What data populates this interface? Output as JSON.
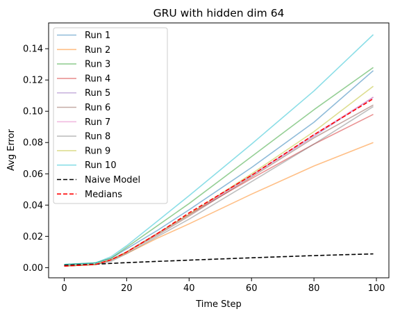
{
  "chart_data": {
    "type": "line",
    "title": "GRU with hidden dim 64",
    "xlabel": "Time Step",
    "ylabel": "Avg Error",
    "xlim": [
      -5,
      104
    ],
    "ylim": [
      -0.0065,
      0.1565
    ],
    "xticks": [
      0,
      20,
      40,
      60,
      80,
      100
    ],
    "yticks": [
      0.0,
      0.02,
      0.04,
      0.06,
      0.08,
      0.1,
      0.12,
      0.14
    ],
    "ytick_labels": [
      "0.00",
      "0.02",
      "0.04",
      "0.06",
      "0.08",
      "0.10",
      "0.12",
      "0.14"
    ],
    "grid": false,
    "legend_position": "top-left",
    "series": [
      {
        "name": "Run 1",
        "color": "#1f77b4",
        "alpha": 0.5,
        "dash": "solid",
        "x": [
          0,
          10,
          15,
          20,
          30,
          40,
          60,
          80,
          99
        ],
        "y": [
          0.002,
          0.003,
          0.006,
          0.012,
          0.024,
          0.037,
          0.064,
          0.093,
          0.126
        ]
      },
      {
        "name": "Run 2",
        "color": "#ff7f0e",
        "alpha": 0.5,
        "dash": "solid",
        "x": [
          0,
          10,
          15,
          20,
          30,
          40,
          60,
          80,
          99
        ],
        "y": [
          0.001,
          0.002,
          0.005,
          0.009,
          0.019,
          0.028,
          0.047,
          0.065,
          0.08
        ]
      },
      {
        "name": "Run 3",
        "color": "#2ca02c",
        "alpha": 0.5,
        "dash": "solid",
        "x": [
          0,
          10,
          15,
          20,
          30,
          40,
          60,
          80,
          99
        ],
        "y": [
          0.002,
          0.003,
          0.006,
          0.013,
          0.027,
          0.041,
          0.071,
          0.101,
          0.128
        ]
      },
      {
        "name": "Run 4",
        "color": "#d62728",
        "alpha": 0.5,
        "dash": "solid",
        "x": [
          0,
          10,
          15,
          20,
          30,
          40,
          60,
          80,
          99
        ],
        "y": [
          0.001,
          0.002,
          0.005,
          0.01,
          0.022,
          0.034,
          0.057,
          0.079,
          0.098
        ]
      },
      {
        "name": "Run 5",
        "color": "#9467bd",
        "alpha": 0.5,
        "dash": "solid",
        "x": [
          0,
          10,
          15,
          20,
          30,
          40,
          60,
          80,
          99
        ],
        "y": [
          0.001,
          0.002,
          0.005,
          0.01,
          0.022,
          0.034,
          0.059,
          0.084,
          0.109
        ]
      },
      {
        "name": "Run 6",
        "color": "#8c564b",
        "alpha": 0.5,
        "dash": "solid",
        "x": [
          0,
          10,
          15,
          20,
          30,
          40,
          60,
          80,
          99
        ],
        "y": [
          0.001,
          0.002,
          0.005,
          0.01,
          0.021,
          0.033,
          0.058,
          0.083,
          0.104
        ]
      },
      {
        "name": "Run 7",
        "color": "#e377c2",
        "alpha": 0.5,
        "dash": "solid",
        "x": [
          0,
          10,
          15,
          20,
          30,
          40,
          60,
          80,
          99
        ],
        "y": [
          0.001,
          0.002,
          0.005,
          0.01,
          0.022,
          0.034,
          0.059,
          0.085,
          0.109
        ]
      },
      {
        "name": "Run 8",
        "color": "#7f7f7f",
        "alpha": 0.5,
        "dash": "solid",
        "x": [
          0,
          10,
          15,
          20,
          30,
          40,
          60,
          80,
          99
        ],
        "y": [
          0.001,
          0.002,
          0.004,
          0.009,
          0.02,
          0.031,
          0.055,
          0.079,
          0.103
        ]
      },
      {
        "name": "Run 9",
        "color": "#bcbd22",
        "alpha": 0.5,
        "dash": "solid",
        "x": [
          0,
          10,
          15,
          20,
          30,
          40,
          60,
          80,
          99
        ],
        "y": [
          0.001,
          0.002,
          0.005,
          0.01,
          0.022,
          0.034,
          0.06,
          0.087,
          0.116
        ]
      },
      {
        "name": "Run 10",
        "color": "#17becf",
        "alpha": 0.5,
        "dash": "solid",
        "x": [
          0,
          10,
          15,
          20,
          30,
          40,
          60,
          80,
          99
        ],
        "y": [
          0.002,
          0.003,
          0.007,
          0.014,
          0.03,
          0.046,
          0.079,
          0.113,
          0.149
        ]
      },
      {
        "name": "Naive Model",
        "color": "#000000",
        "alpha": 1.0,
        "dash": "dashed",
        "x": [
          0,
          10,
          20,
          40,
          60,
          80,
          99
        ],
        "y": [
          0.0015,
          0.0022,
          0.0032,
          0.0048,
          0.0063,
          0.0077,
          0.0088
        ]
      },
      {
        "name": "Medians",
        "color": "#ff0000",
        "alpha": 1.0,
        "dash": "dashed",
        "x": [
          0,
          10,
          15,
          20,
          30,
          40,
          60,
          80,
          99
        ],
        "y": [
          0.001,
          0.002,
          0.005,
          0.01,
          0.022,
          0.035,
          0.059,
          0.085,
          0.108
        ]
      }
    ]
  }
}
